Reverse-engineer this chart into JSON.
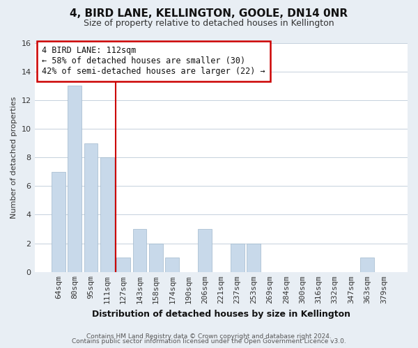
{
  "title": "4, BIRD LANE, KELLINGTON, GOOLE, DN14 0NR",
  "subtitle": "Size of property relative to detached houses in Kellington",
  "xlabel": "Distribution of detached houses by size in Kellington",
  "ylabel": "Number of detached properties",
  "bar_labels": [
    "64sqm",
    "80sqm",
    "95sqm",
    "111sqm",
    "127sqm",
    "143sqm",
    "158sqm",
    "174sqm",
    "190sqm",
    "206sqm",
    "221sqm",
    "237sqm",
    "253sqm",
    "269sqm",
    "284sqm",
    "300sqm",
    "316sqm",
    "332sqm",
    "347sqm",
    "363sqm",
    "379sqm"
  ],
  "bar_values": [
    7,
    13,
    9,
    8,
    1,
    3,
    2,
    1,
    0,
    3,
    0,
    2,
    2,
    0,
    0,
    0,
    0,
    0,
    0,
    1,
    0
  ],
  "bar_color": "#c8d9ea",
  "vline_pos": 3.5,
  "vline_color": "#cc0000",
  "annotation_title": "4 BIRD LANE: 112sqm",
  "annotation_line1": "← 58% of detached houses are smaller (30)",
  "annotation_line2": "42% of semi-detached houses are larger (22) →",
  "annotation_box_color": "#ffffff",
  "annotation_box_edge": "#cc0000",
  "ylim": [
    0,
    16
  ],
  "yticks": [
    0,
    2,
    4,
    6,
    8,
    10,
    12,
    14,
    16
  ],
  "footer_line1": "Contains HM Land Registry data © Crown copyright and database right 2024.",
  "footer_line2": "Contains public sector information licensed under the Open Government Licence v3.0.",
  "bg_color": "#e8eef4",
  "plot_bg_color": "#ffffff",
  "grid_color": "#c5d0dc",
  "title_fontsize": 11,
  "subtitle_fontsize": 9,
  "xlabel_fontsize": 9,
  "ylabel_fontsize": 8,
  "tick_fontsize": 8,
  "annotation_fontsize": 8.5,
  "footer_fontsize": 6.5
}
